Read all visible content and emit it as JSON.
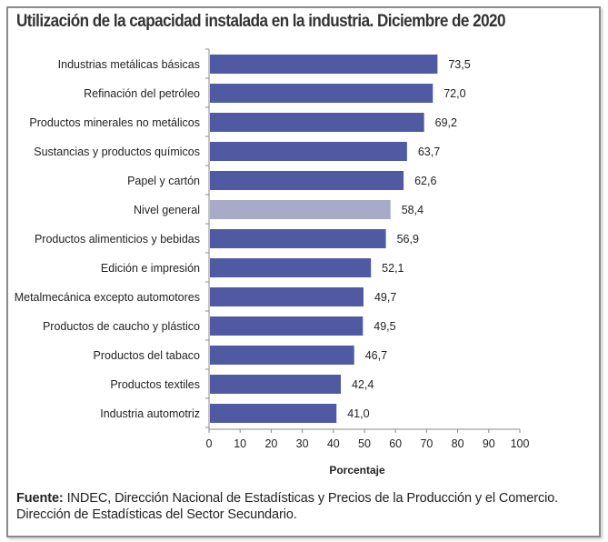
{
  "chart_data": {
    "type": "bar",
    "orientation": "horizontal",
    "title": "Utilización de la capacidad instalada en la industria. Diciembre de 2020",
    "xlabel": "Porcentaje",
    "ylabel": "",
    "xlim": [
      0,
      100
    ],
    "xticks": [
      0,
      10,
      20,
      30,
      40,
      50,
      60,
      70,
      80,
      90,
      100
    ],
    "grid": false,
    "categories": [
      "Industrias metálicas básicas",
      "Refinación del petróleo",
      "Productos minerales no metálicos",
      "Sustancias y productos químicos",
      "Papel y cartón",
      "Nivel general",
      "Productos alimenticios y bebidas",
      "Edición e impresión",
      "Metalmecánica excepto automotores",
      "Productos de caucho y plástico",
      "Productos del tabaco",
      "Productos textiles",
      "Industria automotriz"
    ],
    "values": [
      73.5,
      72.0,
      69.2,
      63.7,
      62.6,
      58.4,
      56.9,
      52.1,
      49.7,
      49.5,
      46.7,
      42.4,
      41.0
    ],
    "value_labels": [
      "73,5",
      "72,0",
      "69,2",
      "63,7",
      "62,6",
      "58,4",
      "56,9",
      "52,1",
      "49,7",
      "49,5",
      "46,7",
      "42,4",
      "41,0"
    ],
    "highlight_category": "Nivel general",
    "colors": {
      "bar": "#4f5aa3",
      "highlight": "#a9a9c8"
    }
  },
  "source": {
    "label": "Fuente:",
    "text": " INDEC, Dirección Nacional de Estadísticas y Precios de la Producción y el Comercio.",
    "line2": "Dirección de Estadísticas del Sector Secundario."
  }
}
